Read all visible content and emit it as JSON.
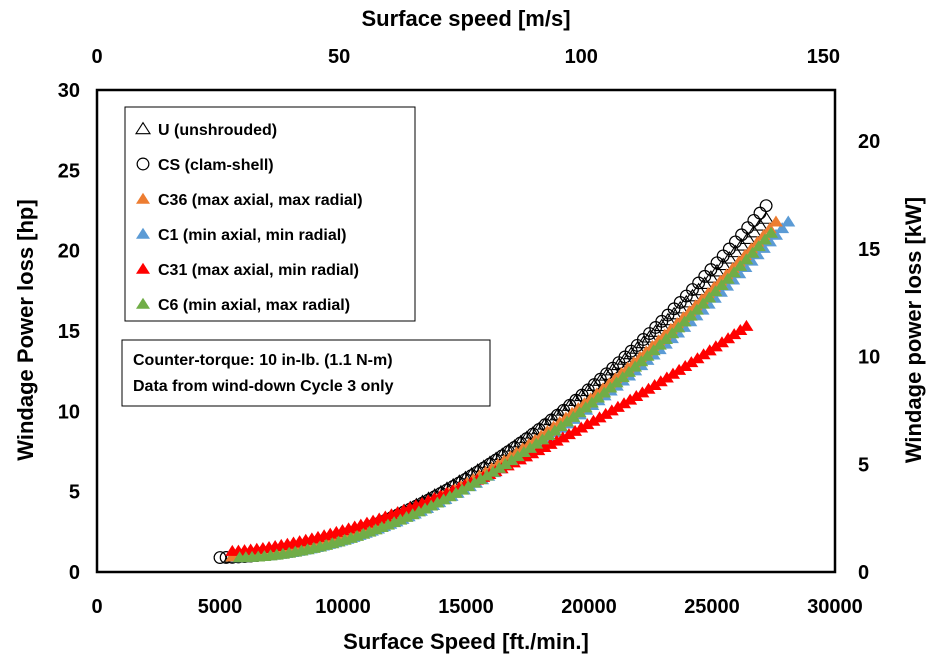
{
  "chart_data": {
    "type": "scatter",
    "xlabel": "Surface Speed [ft./min.]",
    "ylabel": "Windage Power loss [hp]",
    "x2label": "Surface speed [m/s]",
    "y2label": "Windage power loss [kW]",
    "xlim": [
      0,
      30000
    ],
    "ylim": [
      0,
      30
    ],
    "x2lim": [
      0,
      152.4
    ],
    "y2lim": [
      0,
      22.37
    ],
    "xticks": [
      "0",
      "5000",
      "10000",
      "15000",
      "20000",
      "25000",
      "30000"
    ],
    "yticks": [
      "0",
      "5",
      "10",
      "15",
      "20",
      "25",
      "30"
    ],
    "x2ticks": [
      "0",
      "50",
      "100",
      "150"
    ],
    "y2ticks": [
      "0",
      "5",
      "10",
      "15",
      "20"
    ],
    "grid": false,
    "legend_position": "top-left",
    "series": [
      {
        "name": "U (unshrouded)",
        "marker": "open-triangle",
        "color": "#000000",
        "x_start": 5500,
        "x_end": 27200,
        "y_start": 0.9,
        "y_end": 22.0,
        "exponent": 1.75
      },
      {
        "name": "CS (clam-shell)",
        "marker": "open-circle",
        "color": "#000000",
        "x_start": 5000,
        "x_end": 27200,
        "y_start": 0.9,
        "y_end": 22.8,
        "exponent": 1.88
      },
      {
        "name": "C36 (max axial, max radial)",
        "marker": "filled-triangle",
        "color": "#ED7D31",
        "x_start": 5500,
        "x_end": 27600,
        "y_start": 0.95,
        "y_end": 21.8,
        "exponent": 1.8
      },
      {
        "name": "C1 (min axial, min radial)",
        "marker": "filled-triangle",
        "color": "#5B9BD5",
        "x_start": 5700,
        "x_end": 28100,
        "y_start": 0.9,
        "y_end": 21.8,
        "exponent": 1.8
      },
      {
        "name": "C31 (max axial, min radial)",
        "marker": "filled-triangle",
        "color": "#FF0000",
        "x_start": 5500,
        "x_end": 26400,
        "y_start": 1.3,
        "y_end": 15.3,
        "exponent": 1.55
      },
      {
        "name": "C6 (min axial, max radial)",
        "marker": "filled-triangle",
        "color": "#70AD47",
        "x_start": 5800,
        "x_end": 27400,
        "y_start": 0.9,
        "y_end": 21.1,
        "exponent": 1.8
      }
    ],
    "annotation": {
      "lines": [
        "Counter-torque: 10 in-lb. (1.1 N-m)",
        "Data from wind-down Cycle 3 only"
      ]
    }
  }
}
